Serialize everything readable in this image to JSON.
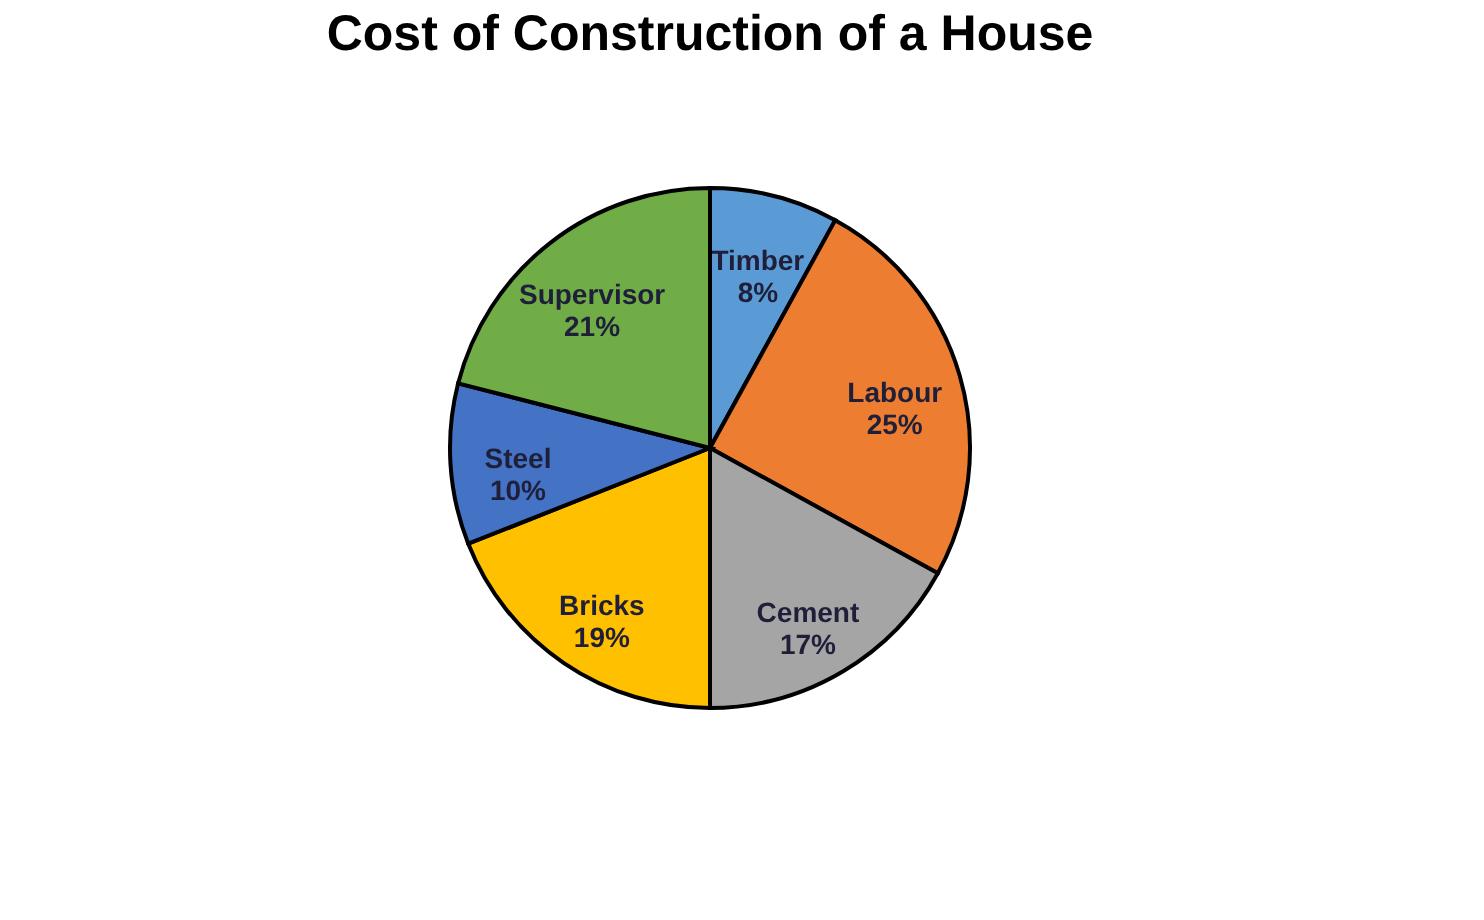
{
  "chart_data": {
    "type": "pie",
    "title": "Cost of Construction of a House",
    "categories": [
      "Timber",
      "Labour",
      "Cement",
      "Bricks",
      "Steel",
      "Supervisor"
    ],
    "values": [
      8,
      25,
      17,
      19,
      10,
      21
    ],
    "value_labels": [
      "8%",
      "25%",
      "17%",
      "19%",
      "10%",
      "21%"
    ],
    "colors": [
      "#5b9bd5",
      "#ed7d31",
      "#a5a5a5",
      "#ffc000",
      "#4472c4",
      "#70ad47"
    ],
    "legend": false
  }
}
